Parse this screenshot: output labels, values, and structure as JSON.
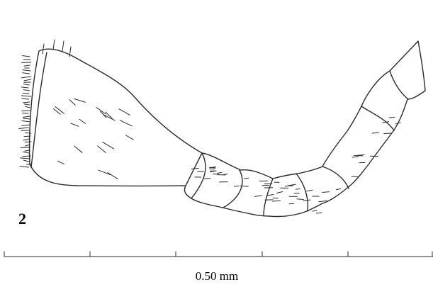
{
  "figure_label": "2",
  "scale_bar": {
    "label": "0.50 mm"
  }
}
